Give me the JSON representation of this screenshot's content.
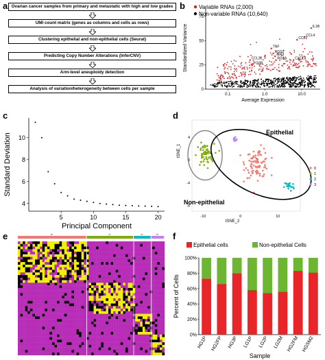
{
  "panel_labels": [
    "a",
    "b",
    "c",
    "d",
    "e",
    "f"
  ],
  "flowchart": {
    "steps": [
      "Ovarian cancer samples from primary and metastatic with high and low grades",
      "UMI count matrix (genes as columns and cells as rows)",
      "Clustering epithelial and non-epithelial cells (Seurat)",
      "Predicting Copy Number Alterations (InferCNV)",
      "Arm-level aneuploidy detection",
      "Analysis of variation/heterogeneity between cells per sample"
    ]
  },
  "chart_data": [
    {
      "id": "b",
      "type": "scatter",
      "xlabel": "Average Expression",
      "ylabel": "Standardized Variance",
      "xscale": "log",
      "xticks": [
        "0.1",
        "1.0",
        "10.0"
      ],
      "yticks": [
        "0",
        "25",
        "50",
        "75"
      ],
      "ylim": [
        0,
        85
      ],
      "legend": [
        {
          "name": "Variable RNAs (2,000)",
          "color": "#e41a1c"
        },
        {
          "name": "Non-variable RNAs (10,640)",
          "color": "#000000"
        }
      ],
      "annotations": [
        {
          "label": "IL1B",
          "x": 18,
          "y": 63
        },
        {
          "label": "CCL4",
          "x": 12,
          "y": 54
        },
        {
          "label": "CCL3",
          "x": 7.5,
          "y": 51
        },
        {
          "label": "TNF",
          "x": 1.5,
          "y": 42
        },
        {
          "label": "RGS1",
          "x": 2.0,
          "y": 30
        },
        {
          "label": "CXCL8",
          "x": 6,
          "y": 30
        },
        {
          "label": "CCL20",
          "x": 0.4,
          "y": 30
        },
        {
          "label": "RGS2",
          "x": 1.7,
          "y": 37
        },
        {
          "label": "IER3",
          "x": 1.9,
          "y": 34
        },
        {
          "label": "FOSB",
          "x": 0.45,
          "y": 25
        }
      ]
    },
    {
      "id": "c",
      "type": "scatter",
      "xlabel": "Principal Component",
      "ylabel": "Standard Deviation",
      "xticks": [
        "5",
        "10",
        "15",
        "20"
      ],
      "yticks": [
        "4",
        "6",
        "8",
        "10"
      ],
      "xlim": [
        0,
        21
      ],
      "ylim": [
        3.3,
        11.8
      ],
      "x": [
        1,
        2,
        3,
        4,
        5,
        6,
        7,
        8,
        9,
        10,
        11,
        12,
        13,
        14,
        15,
        16,
        17,
        18,
        19,
        20
      ],
      "y": [
        11.4,
        10.0,
        6.9,
        5.8,
        5.0,
        4.7,
        4.4,
        4.3,
        4.2,
        4.1,
        4.0,
        3.95,
        3.9,
        3.85,
        3.82,
        3.8,
        3.78,
        3.76,
        3.74,
        3.72
      ]
    },
    {
      "id": "d",
      "type": "scatter",
      "xlabel": "tSNE_2",
      "ylabel": "tSNE_1",
      "xticks": [
        "-10",
        "0",
        "10"
      ],
      "yticks": [
        "-8",
        "-4",
        "0",
        "4"
      ],
      "xlim": [
        -13,
        16
      ],
      "ylim": [
        -9,
        7
      ],
      "legend": [
        {
          "name": "0",
          "color": "#f8766d"
        },
        {
          "name": "1",
          "color": "#7cae00"
        },
        {
          "name": "2",
          "color": "#00bfc4"
        },
        {
          "name": "3",
          "color": "#c77cff"
        }
      ],
      "annotations": [
        "Epithelial",
        "Non-epithelial"
      ],
      "clusters": [
        {
          "name": "0",
          "center": [
            4.5,
            -0.5
          ],
          "spread": [
            3.2,
            2.6
          ],
          "n": 95
        },
        {
          "name": "1",
          "center": [
            -9.5,
            0.8
          ],
          "spread": [
            2.4,
            2.0
          ],
          "n": 60
        },
        {
          "name": "2",
          "center": [
            13,
            -4.6
          ],
          "spread": [
            1.3,
            0.9
          ],
          "n": 25
        },
        {
          "name": "3",
          "center": [
            -1.5,
            3.6
          ],
          "spread": [
            0.6,
            0.6
          ],
          "n": 12
        }
      ]
    },
    {
      "id": "e",
      "type": "heatmap",
      "column_groups": [
        {
          "name": "0",
          "color": "#f8766d",
          "width": 0.47
        },
        {
          "name": "1",
          "color": "#7cae00",
          "width": 0.32
        },
        {
          "name": "2",
          "color": "#00bfc4",
          "width": 0.12
        },
        {
          "name": "3",
          "color": "#c77cff",
          "width": 0.09
        }
      ],
      "colors": {
        "low": "#b72db7",
        "mid": "#000000",
        "high": "#f0f000"
      }
    },
    {
      "id": "f",
      "type": "bar",
      "stacked": true,
      "percent": true,
      "xlabel": "Sample",
      "ylabel": "Percent of Cells",
      "yticks": [
        "0%",
        "20%",
        "40%",
        "60%",
        "80%",
        "100%"
      ],
      "categories": [
        "HG1P",
        "HG2FP",
        "HG3P",
        "LG1P",
        "LG2P",
        "LG2M",
        "HG2FM",
        "HGSM2"
      ],
      "series": [
        {
          "name": "Epithelial cells",
          "color": "#e8262a",
          "values": [
            73,
            66,
            80,
            58,
            54,
            56,
            83,
            81
          ]
        },
        {
          "name": "Non-epithelial Cells",
          "color": "#6cb631",
          "values": [
            27,
            34,
            20,
            42,
            46,
            44,
            17,
            19
          ]
        }
      ]
    }
  ]
}
